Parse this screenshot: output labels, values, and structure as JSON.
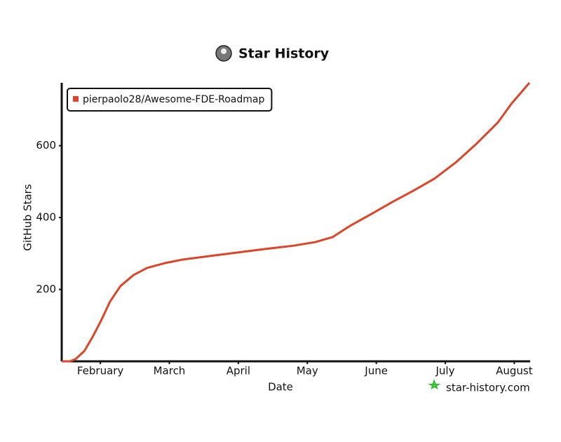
{
  "chart_data": {
    "type": "line",
    "title": "Star History",
    "x_label": "Date",
    "y_label": "GitHub Stars",
    "watermark": "star-history.com",
    "x": [
      1.44,
      1.56,
      1.64,
      1.77,
      1.9,
      2.02,
      2.14,
      2.29,
      2.48,
      2.68,
      2.93,
      3.19,
      3.59,
      4.0,
      4.41,
      4.81,
      5.12,
      5.37,
      5.62,
      5.93,
      6.23,
      6.54,
      6.84,
      7.15,
      7.45,
      7.76,
      7.96,
      8.22
    ],
    "series": [
      {
        "name": "pierpaolo28/Awesome-FDE-Roadmap",
        "color": "#dd4528",
        "values": [
          0,
          0,
          6,
          29,
          72,
          117,
          166,
          209,
          240,
          260,
          273,
          283,
          293,
          303,
          313,
          322,
          332,
          346,
          377,
          410,
          443,
          475,
          508,
          553,
          605,
          664,
          717,
          775
        ]
      }
    ],
    "xlim": [
      1.44,
      8.23
    ],
    "xticks": [
      {
        "value": 2,
        "label": "February"
      },
      {
        "value": 3,
        "label": "March"
      },
      {
        "value": 4,
        "label": "April"
      },
      {
        "value": 5,
        "label": "May"
      },
      {
        "value": 6,
        "label": "June"
      },
      {
        "value": 7,
        "label": "July"
      },
      {
        "value": 8,
        "label": "August"
      }
    ],
    "ylim": [
      0,
      775
    ],
    "yticks": [
      200,
      400,
      600
    ],
    "legend": "top-left"
  }
}
